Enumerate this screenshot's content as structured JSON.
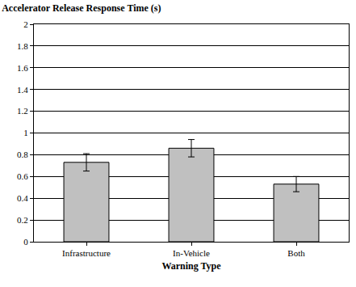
{
  "chart_data": {
    "type": "bar",
    "title": "Accelerator Release Response Time (s)",
    "x_label": "Warning Type",
    "categories": [
      "Infrastructure",
      "In-Vehicle",
      "Both"
    ],
    "values": [
      0.73,
      0.86,
      0.53
    ],
    "errors": [
      0.08,
      0.08,
      0.07
    ],
    "color": "#c0c0c0",
    "ylim": [
      0,
      2
    ],
    "yticks": [
      0,
      0.2,
      0.4,
      0.6,
      0.8,
      1,
      1.2,
      1.4,
      1.6,
      1.8,
      2
    ],
    "grid": true
  }
}
